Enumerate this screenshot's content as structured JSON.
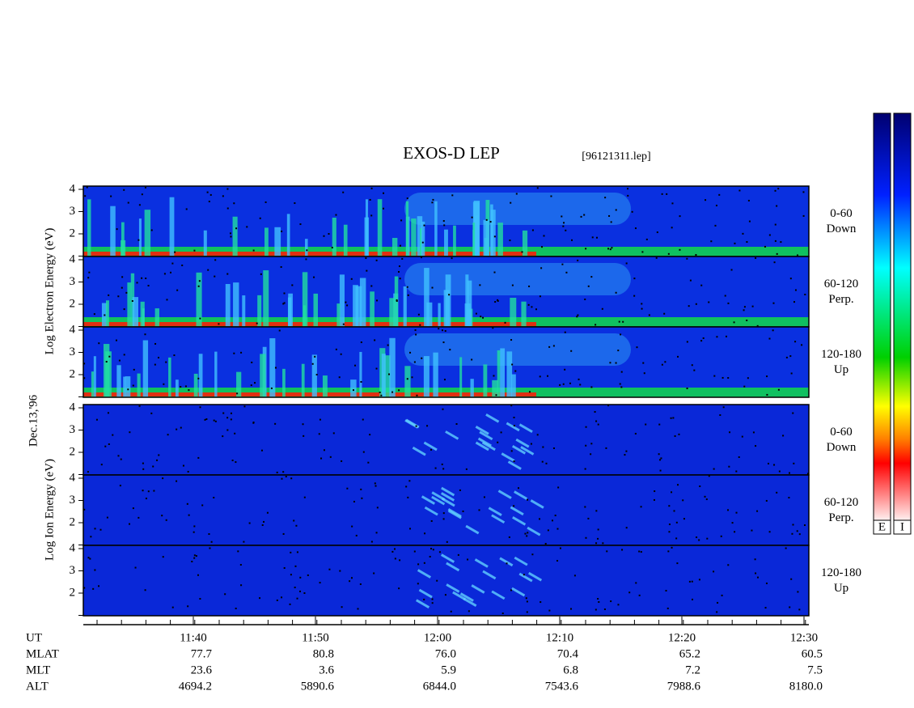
{
  "title": "EXOS-D LEP",
  "filename": "[96121311.lep]",
  "date": "Dec.13,'96",
  "panels": [
    {
      "ylabel": "Log Electron Energy (eV)",
      "yticks": [
        2,
        3,
        4
      ],
      "channels": [
        {
          "angle": "0-60",
          "dir": "Down"
        },
        {
          "angle": "60-120",
          "dir": "Perp."
        },
        {
          "angle": "120-180",
          "dir": "Up"
        }
      ]
    },
    {
      "ylabel": "Log Ion Energy (eV)",
      "yticks": [
        2,
        3,
        4
      ],
      "channels": [
        {
          "angle": "0-60",
          "dir": "Down"
        },
        {
          "angle": "60-120",
          "dir": "Perp."
        },
        {
          "angle": "120-180",
          "dir": "Up"
        }
      ]
    }
  ],
  "colorbars": [
    "E",
    "I"
  ],
  "table": {
    "row_labels": [
      "UT",
      "MLAT",
      "MLT",
      "ALT"
    ],
    "columns": [
      {
        "UT": "11:40",
        "MLAT": "77.7",
        "MLT": "23.6",
        "ALT": "4694.2"
      },
      {
        "UT": "11:50",
        "MLAT": "80.8",
        "MLT": "3.6",
        "ALT": "5890.6"
      },
      {
        "UT": "12:00",
        "MLAT": "76.0",
        "MLT": "5.9",
        "ALT": "6844.0"
      },
      {
        "UT": "12:10",
        "MLAT": "70.4",
        "MLT": "6.8",
        "ALT": "7543.6"
      },
      {
        "UT": "12:20",
        "MLAT": "65.2",
        "MLT": "7.2",
        "ALT": "7988.6"
      },
      {
        "UT": "12:30",
        "MLAT": "60.5",
        "MLT": "7.5",
        "ALT": "8180.0"
      }
    ]
  }
}
